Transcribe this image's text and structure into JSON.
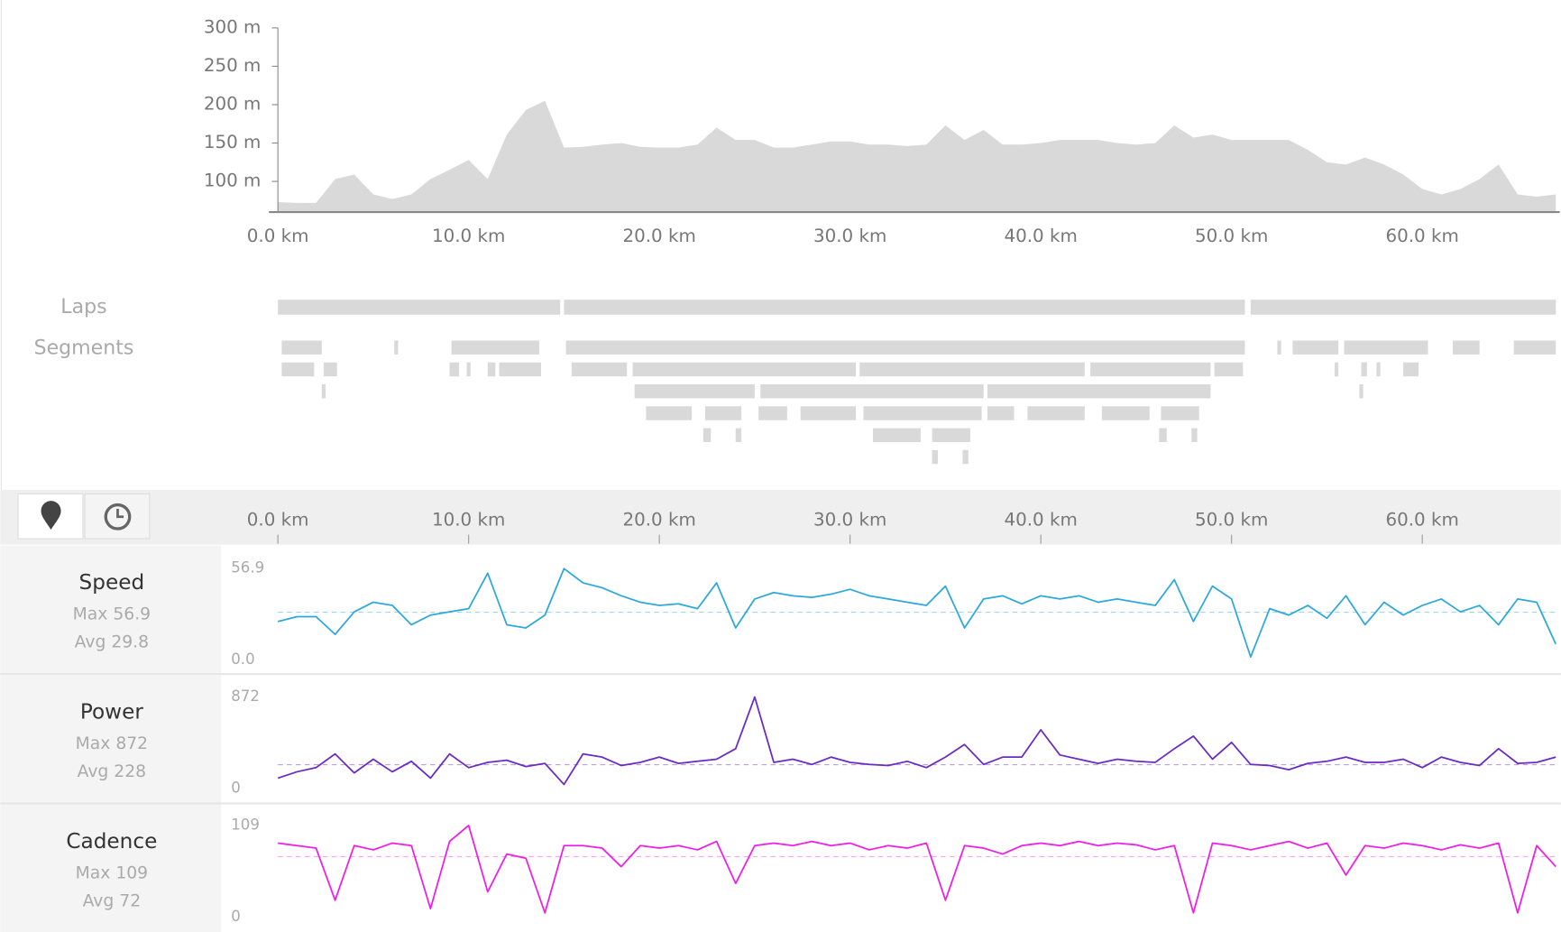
{
  "chart_data": [
    {
      "type": "area",
      "color": "#d9d9d9",
      "x": [
        0,
        1,
        2,
        3,
        4,
        5,
        6,
        7,
        8,
        9,
        10,
        11,
        12,
        13,
        14,
        15,
        16,
        17,
        18,
        19,
        20,
        21,
        22,
        23,
        24,
        25,
        26,
        27,
        28,
        29,
        30,
        31,
        32,
        33,
        34,
        35,
        36,
        37,
        38,
        39,
        40,
        41,
        42,
        43,
        44,
        45,
        46,
        47,
        48,
        49,
        50,
        51,
        52,
        53,
        54,
        55,
        56,
        57,
        58,
        59,
        60,
        61,
        62,
        63,
        64,
        65,
        66,
        67
      ],
      "values": [
        73,
        72,
        72,
        103,
        109,
        83,
        77,
        83,
        103,
        115,
        128,
        103,
        161,
        193,
        205,
        144,
        145,
        148,
        150,
        145,
        144,
        144,
        148,
        170,
        154,
        154,
        144,
        144,
        148,
        152,
        152,
        148,
        148,
        146,
        148,
        173,
        154,
        167,
        148,
        148,
        150,
        154,
        154,
        154,
        150,
        148,
        150,
        173,
        157,
        161,
        154,
        154,
        154,
        154,
        141,
        125,
        122,
        131,
        122,
        109,
        90,
        83,
        90,
        103,
        122,
        83,
        80,
        83
      ],
      "xlim": [
        0,
        67
      ],
      "ylim": [
        60,
        300
      ],
      "xticks": [
        {
          "value": 0,
          "label": "0.0 km"
        },
        {
          "value": 10,
          "label": "10.0 km"
        },
        {
          "value": 20,
          "label": "20.0 km"
        },
        {
          "value": 30,
          "label": "30.0 km"
        },
        {
          "value": 40,
          "label": "40.0 km"
        },
        {
          "value": 50,
          "label": "50.0 km"
        },
        {
          "value": 60,
          "label": "60.0 km"
        }
      ],
      "yticks": [
        {
          "value": 100,
          "label": "100 m"
        },
        {
          "value": 150,
          "label": "150 m"
        },
        {
          "value": 200,
          "label": "200 m"
        },
        {
          "value": 250,
          "label": "250 m"
        },
        {
          "value": 300,
          "label": "300 m"
        }
      ]
    },
    {
      "type": "line",
      "title": "Speed",
      "color": "#2ea8dc",
      "max": {
        "value": 56.9,
        "label": "Max 56.9"
      },
      "avg": {
        "value": 29.8,
        "label": "Avg 29.8"
      },
      "x": [
        0,
        1,
        2,
        3,
        4,
        5,
        6,
        7,
        8,
        9,
        10,
        11,
        12,
        13,
        14,
        15,
        16,
        17,
        18,
        19,
        20,
        21,
        22,
        23,
        24,
        25,
        26,
        27,
        28,
        29,
        30,
        31,
        32,
        33,
        34,
        35,
        36,
        37,
        38,
        39,
        40,
        41,
        42,
        43,
        44,
        45,
        46,
        47,
        48,
        49,
        50,
        51,
        52,
        53,
        54,
        55,
        56,
        57,
        58,
        59,
        60,
        61,
        62,
        63,
        64,
        65,
        66,
        67
      ],
      "values": [
        24,
        27,
        27,
        16,
        30,
        36,
        34,
        22,
        28,
        30,
        32,
        54,
        22,
        20,
        28,
        56.9,
        48,
        45,
        40,
        36,
        34,
        35,
        32,
        48,
        20,
        38,
        42,
        40,
        39,
        41,
        44,
        40,
        38,
        36,
        34,
        46,
        20,
        38,
        40,
        35,
        40,
        38,
        40,
        36,
        38,
        36,
        34,
        50,
        24,
        46,
        38,
        2,
        32,
        28,
        34,
        26,
        40,
        22,
        36,
        28,
        34,
        38,
        30,
        34,
        22,
        38,
        36,
        10
      ],
      "xlim": [
        0,
        67
      ],
      "ylim": [
        0,
        56.9
      ],
      "yticks": [
        {
          "value": 0,
          "label": "0.0"
        },
        56.9
      ]
    },
    {
      "type": "line",
      "title": "Power",
      "color": "#6a2bc4",
      "max": {
        "value": 872,
        "label": "Max 872"
      },
      "avg": {
        "value": 228,
        "label": "Avg 228"
      },
      "x": [
        0,
        1,
        2,
        3,
        4,
        5,
        6,
        7,
        8,
        9,
        10,
        11,
        12,
        13,
        14,
        15,
        16,
        17,
        18,
        19,
        20,
        21,
        22,
        23,
        24,
        25,
        26,
        27,
        28,
        29,
        30,
        31,
        32,
        33,
        34,
        35,
        36,
        37,
        38,
        39,
        40,
        41,
        42,
        43,
        44,
        45,
        46,
        47,
        48,
        49,
        50,
        51,
        52,
        53,
        54,
        55,
        56,
        57,
        58,
        59,
        60,
        61,
        62,
        63,
        64,
        65,
        66,
        67
      ],
      "values": [
        100,
        160,
        200,
        330,
        150,
        280,
        160,
        260,
        100,
        330,
        200,
        250,
        270,
        210,
        240,
        40,
        330,
        300,
        220,
        250,
        300,
        240,
        260,
        280,
        380,
        872,
        250,
        280,
        230,
        300,
        250,
        230,
        220,
        260,
        200,
        300,
        420,
        230,
        300,
        300,
        560,
        320,
        280,
        240,
        280,
        260,
        250,
        380,
        500,
        280,
        440,
        230,
        220,
        180,
        240,
        260,
        300,
        250,
        250,
        280,
        200,
        300,
        250,
        220,
        380,
        240,
        250,
        300
      ],
      "xlim": [
        0,
        67
      ],
      "ylim": [
        0,
        872
      ],
      "yticks": [
        0,
        872
      ]
    },
    {
      "type": "line",
      "title": "Cadence",
      "color": "#ee1ee8",
      "max": {
        "value": 109,
        "label": "Max 109"
      },
      "avg": {
        "value": 72,
        "label": "Avg 72"
      },
      "x": [
        0,
        1,
        2,
        3,
        4,
        5,
        6,
        7,
        8,
        9,
        10,
        11,
        12,
        13,
        14,
        15,
        16,
        17,
        18,
        19,
        20,
        21,
        22,
        23,
        24,
        25,
        26,
        27,
        28,
        29,
        30,
        31,
        32,
        33,
        34,
        35,
        36,
        37,
        38,
        39,
        40,
        41,
        42,
        43,
        44,
        45,
        46,
        47,
        48,
        49,
        50,
        51,
        52,
        53,
        54,
        55,
        56,
        57,
        58,
        59,
        60,
        61,
        62,
        63,
        64,
        65,
        66,
        67
      ],
      "values": [
        88,
        85,
        82,
        20,
        85,
        80,
        88,
        85,
        10,
        90,
        109,
        30,
        75,
        70,
        5,
        85,
        85,
        82,
        60,
        85,
        82,
        85,
        80,
        90,
        40,
        85,
        88,
        85,
        90,
        85,
        88,
        80,
        85,
        82,
        88,
        20,
        85,
        82,
        75,
        85,
        88,
        85,
        90,
        85,
        88,
        86,
        80,
        85,
        5,
        88,
        85,
        80,
        85,
        90,
        82,
        88,
        50,
        85,
        82,
        88,
        85,
        80,
        86,
        82,
        88,
        5,
        85,
        60
      ],
      "xlim": [
        0,
        67
      ],
      "ylim": [
        0,
        109
      ],
      "yticks": [
        0,
        109
      ]
    }
  ],
  "laps_label": "Laps",
  "segments_label": "Segments",
  "laps": [
    [
      0,
      14.8
    ],
    [
      15,
      50.7
    ],
    [
      51,
      67
    ]
  ],
  "segments": [
    [
      [
        0.2,
        2.3
      ],
      [
        6.1,
        6.3
      ],
      [
        9.1,
        13.7
      ],
      [
        15.1,
        50.7
      ],
      [
        52.4,
        52.6
      ],
      [
        53.2,
        55.6
      ],
      [
        55.9,
        60.3
      ],
      [
        61.6,
        63.0
      ],
      [
        64.8,
        67.0
      ]
    ],
    [
      [
        0.2,
        1.9
      ],
      [
        2.4,
        3.1
      ],
      [
        9.0,
        9.5
      ],
      [
        9.9,
        10.1
      ],
      [
        11.0,
        11.4
      ],
      [
        11.6,
        13.8
      ],
      [
        15.4,
        18.3
      ],
      [
        18.6,
        30.3
      ],
      [
        30.5,
        42.3
      ],
      [
        42.6,
        48.9
      ],
      [
        49.1,
        50.6
      ],
      [
        55.4,
        55.6
      ],
      [
        56.8,
        57.1
      ],
      [
        57.6,
        57.8
      ],
      [
        59.0,
        59.8
      ]
    ],
    [
      [
        2.3,
        2.5
      ],
      [
        18.7,
        25.0
      ],
      [
        25.3,
        37.0
      ],
      [
        37.2,
        48.9
      ],
      [
        56.7,
        56.9
      ]
    ],
    [
      [
        19.3,
        21.7
      ],
      [
        22.4,
        24.3
      ],
      [
        25.2,
        26.7
      ],
      [
        27.4,
        30.3
      ],
      [
        30.7,
        36.9
      ],
      [
        37.2,
        38.6
      ],
      [
        39.3,
        42.3
      ],
      [
        43.2,
        45.7
      ],
      [
        46.3,
        48.3
      ]
    ],
    [
      [
        22.3,
        22.7
      ],
      [
        24.0,
        24.3
      ],
      [
        31.2,
        33.7
      ],
      [
        34.3,
        36.3
      ],
      [
        46.2,
        46.6
      ],
      [
        47.9,
        48.2
      ]
    ],
    [
      [
        34.3,
        34.6
      ],
      [
        35.9,
        36.2
      ]
    ]
  ],
  "timeline": {
    "xlim": [
      0,
      67
    ],
    "xticks": [
      {
        "value": 0,
        "label": "0.0 km"
      },
      {
        "value": 10,
        "label": "10.0 km"
      },
      {
        "value": 20,
        "label": "20.0 km"
      },
      {
        "value": 30,
        "label": "30.0 km"
      },
      {
        "value": 40,
        "label": "40.0 km"
      },
      {
        "value": 50,
        "label": "50.0 km"
      },
      {
        "value": 60,
        "label": "60.0 km"
      }
    ]
  }
}
